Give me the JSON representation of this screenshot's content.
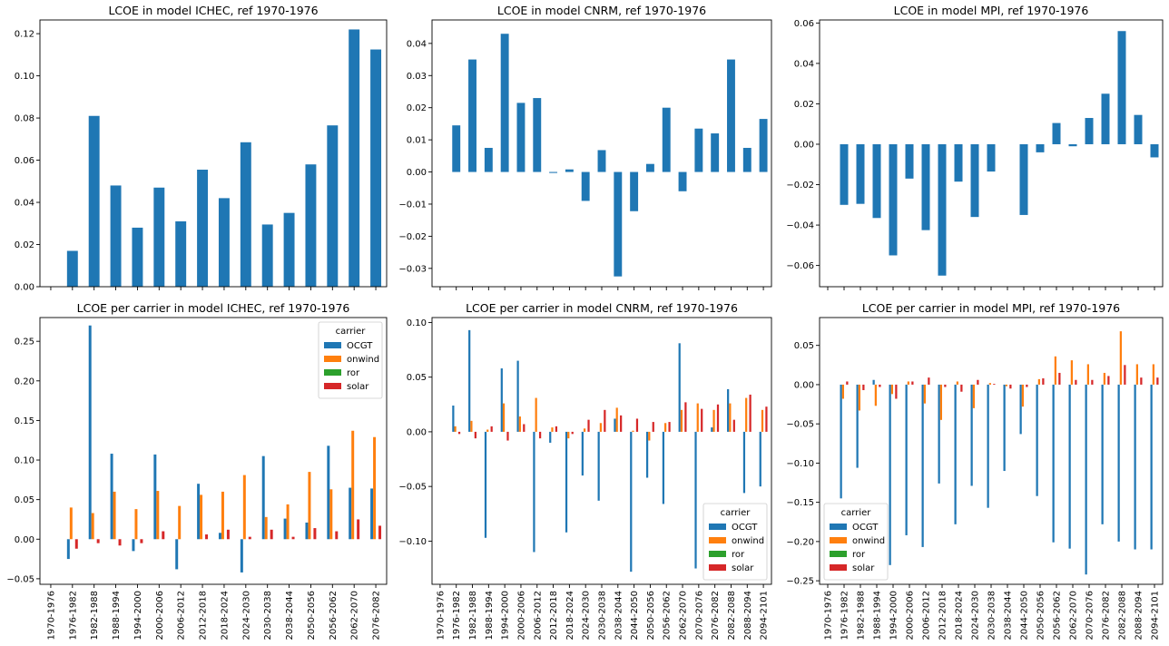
{
  "colors": {
    "OCGT": "#1f77b4",
    "onwind": "#ff7f0e",
    "ror": "#2ca02c",
    "solar": "#d62728",
    "single": "#1f77b4"
  },
  "periods_a": [
    "1970-1976",
    "1976-1982",
    "1982-1988",
    "1988-1994",
    "1994-2000",
    "2000-2006",
    "2006-2012",
    "2012-2018",
    "2018-2024",
    "2024-2030",
    "2030-2038",
    "2038-2044",
    "2050-2056",
    "2056-2062",
    "2062-2070",
    "2076-2082"
  ],
  "periods_b": [
    "1970-1976",
    "1976-1982",
    "1982-1988",
    "1988-1994",
    "1994-2000",
    "2000-2006",
    "2006-2012",
    "2012-2018",
    "2018-2024",
    "2024-2030",
    "2030-2038",
    "2038-2044",
    "2044-2050",
    "2050-2056",
    "2056-2062",
    "2062-2070",
    "2070-2076",
    "2076-2082",
    "2082-2088",
    "2088-2094",
    "2094-2101"
  ],
  "chart_data": [
    {
      "type": "bar",
      "title": "LCOE in model ICHEC, ref 1970-1976",
      "categories_key": "periods_a",
      "values": [
        null,
        0.017,
        0.081,
        0.048,
        0.028,
        0.047,
        0.031,
        0.0555,
        0.042,
        0.0685,
        0.0295,
        0.035,
        0.058,
        0.0765,
        0.122,
        0.1125
      ],
      "ylim": [
        0,
        0.1265
      ],
      "yticks": [
        0.0,
        0.02,
        0.04,
        0.06,
        0.08,
        0.1,
        0.12
      ],
      "ytick_labels": [
        "0.00",
        "0.02",
        "0.04",
        "0.06",
        "0.08",
        "0.10",
        "0.12"
      ],
      "show_xticklabels": false
    },
    {
      "type": "bar",
      "title": "LCOE in model CNRM, ref 1970-1976",
      "categories_key": "periods_b",
      "values": [
        null,
        0.0145,
        0.035,
        0.0075,
        0.043,
        0.0215,
        0.023,
        -0.0003,
        0.0008,
        -0.009,
        0.0068,
        -0.0325,
        -0.0122,
        0.0025,
        0.02,
        -0.006,
        0.0135,
        0.012,
        0.035,
        0.0075,
        0.0165
      ],
      "ylim": [
        -0.0357,
        0.0473
      ],
      "yticks": [
        -0.03,
        -0.02,
        -0.01,
        0.0,
        0.01,
        0.02,
        0.03,
        0.04
      ],
      "ytick_labels": [
        "−0.03",
        "−0.02",
        "−0.01",
        "0.00",
        "0.01",
        "0.02",
        "0.03",
        "0.04"
      ],
      "show_xticklabels": false
    },
    {
      "type": "bar",
      "title": "LCOE in model MPI, ref 1970-1976",
      "categories_key": "periods_b",
      "values": [
        null,
        -0.03,
        -0.0295,
        -0.0365,
        -0.055,
        -0.017,
        -0.0425,
        -0.065,
        -0.0185,
        -0.036,
        -0.0135,
        null,
        -0.035,
        -0.004,
        0.0105,
        -0.001,
        0.013,
        0.025,
        0.056,
        0.0145,
        -0.0065
      ],
      "ylim": [
        -0.0705,
        0.0615
      ],
      "yticks": [
        -0.06,
        -0.04,
        -0.02,
        0.0,
        0.02,
        0.04,
        0.06
      ],
      "ytick_labels": [
        "−0.06",
        "−0.04",
        "−0.02",
        "0.00",
        "0.02",
        "0.04",
        "0.06"
      ],
      "show_xticklabels": false
    },
    {
      "type": "bar",
      "title": "LCOE per carrier in model ICHEC, ref 1970-1976",
      "categories_key": "periods_a",
      "series": [
        {
          "name": "OCGT",
          "values": [
            null,
            -0.025,
            0.27,
            0.108,
            -0.015,
            0.107,
            -0.038,
            0.07,
            0.008,
            -0.042,
            0.105,
            0.026,
            0.021,
            0.118,
            0.065,
            0.064
          ]
        },
        {
          "name": "onwind",
          "values": [
            null,
            0.04,
            0.033,
            0.06,
            0.038,
            0.061,
            0.042,
            0.056,
            0.06,
            0.081,
            0.028,
            0.044,
            0.085,
            0.063,
            0.137,
            0.129
          ]
        },
        {
          "name": "ror",
          "values": [
            null,
            0,
            0,
            0,
            0,
            0,
            0,
            0,
            0,
            0,
            0,
            0,
            0,
            0,
            0,
            0
          ]
        },
        {
          "name": "solar",
          "values": [
            null,
            -0.012,
            -0.005,
            -0.008,
            -0.005,
            0.01,
            0,
            0.006,
            0.012,
            0.003,
            0.012,
            0.003,
            0.014,
            0.01,
            0.025,
            0.017
          ]
        }
      ],
      "ylim": [
        -0.057,
        0.28
      ],
      "yticks": [
        -0.05,
        0.0,
        0.05,
        0.1,
        0.15,
        0.2,
        0.25
      ],
      "ytick_labels": [
        "−0.05",
        "0.00",
        "0.05",
        "0.10",
        "0.15",
        "0.20",
        "0.25"
      ],
      "legend": {
        "title": "carrier",
        "location": "upper right"
      },
      "show_xticklabels": true
    },
    {
      "type": "bar",
      "title": "LCOE per carrier in model CNRM, ref 1970-1976",
      "categories_key": "periods_b",
      "series": [
        {
          "name": "OCGT",
          "values": [
            null,
            0.024,
            0.093,
            -0.097,
            0.058,
            0.065,
            -0.11,
            -0.01,
            -0.092,
            -0.04,
            -0.063,
            0.012,
            -0.128,
            -0.042,
            -0.066,
            0.081,
            -0.125,
            0.004,
            0.039,
            -0.056,
            -0.05
          ]
        },
        {
          "name": "onwind",
          "values": [
            null,
            0.005,
            0.01,
            0.002,
            0.026,
            0.014,
            0.031,
            0.004,
            -0.006,
            0.003,
            0.008,
            0.022,
            0.001,
            -0.008,
            0.008,
            0.02,
            0.026,
            0.02,
            0.026,
            0.031,
            0.02
          ]
        },
        {
          "name": "ror",
          "values": [
            null,
            0,
            0,
            0,
            0,
            0,
            0,
            0,
            0,
            0,
            0,
            0,
            0,
            0,
            0,
            0,
            0,
            0,
            0,
            0,
            0
          ]
        },
        {
          "name": "solar",
          "values": [
            null,
            -0.002,
            -0.006,
            0.005,
            -0.008,
            0.007,
            -0.006,
            0.005,
            -0.002,
            0.011,
            0.02,
            0.015,
            0.012,
            0.009,
            0.009,
            0.027,
            0.021,
            0.025,
            0.011,
            0.034,
            0.023
          ]
        }
      ],
      "ylim": [
        -0.1395,
        0.1045
      ],
      "yticks": [
        -0.1,
        -0.05,
        0.0,
        0.05,
        0.1
      ],
      "ytick_labels": [
        "−0.10",
        "−0.05",
        "0.00",
        "0.05",
        "0.10"
      ],
      "legend": {
        "title": "carrier",
        "location": "lower right"
      },
      "show_xticklabels": true
    },
    {
      "type": "bar",
      "title": "LCOE per carrier in model MPI, ref 1970-1976",
      "categories_key": "periods_b",
      "series": [
        {
          "name": "OCGT",
          "values": [
            null,
            -0.145,
            -0.106,
            0.006,
            -0.23,
            -0.192,
            -0.207,
            -0.126,
            -0.178,
            -0.129,
            -0.157,
            -0.11,
            -0.063,
            -0.142,
            -0.201,
            -0.209,
            -0.242,
            -0.178,
            -0.2,
            -0.21,
            -0.21
          ]
        },
        {
          "name": "onwind",
          "values": [
            null,
            -0.018,
            -0.033,
            -0.027,
            -0.012,
            0.004,
            -0.024,
            -0.045,
            0.004,
            -0.03,
            0.002,
            -0.002,
            -0.028,
            0.007,
            0.036,
            0.031,
            0.026,
            0.015,
            0.068,
            0.026,
            0.026
          ]
        },
        {
          "name": "ror",
          "values": [
            null,
            0,
            0,
            0,
            0,
            0,
            0,
            0,
            0,
            0,
            0,
            0,
            0,
            0,
            0,
            0,
            0,
            0,
            0,
            0,
            0
          ]
        },
        {
          "name": "solar",
          "values": [
            null,
            0.004,
            -0.007,
            -0.003,
            -0.018,
            0.004,
            0.009,
            -0.003,
            -0.009,
            0.006,
            0.001,
            -0.005,
            -0.003,
            0.008,
            0.015,
            0.006,
            0.006,
            0.011,
            0.025,
            0.009,
            0.009
          ]
        }
      ],
      "ylim": [
        -0.2545,
        0.0855
      ],
      "yticks": [
        -0.25,
        -0.2,
        -0.15,
        -0.1,
        -0.05,
        0.0,
        0.05
      ],
      "ytick_labels": [
        "−0.25",
        "−0.20",
        "−0.15",
        "−0.10",
        "−0.05",
        "0.00",
        "0.05"
      ],
      "legend": {
        "title": "carrier",
        "location": "lower left"
      },
      "show_xticklabels": true
    }
  ]
}
